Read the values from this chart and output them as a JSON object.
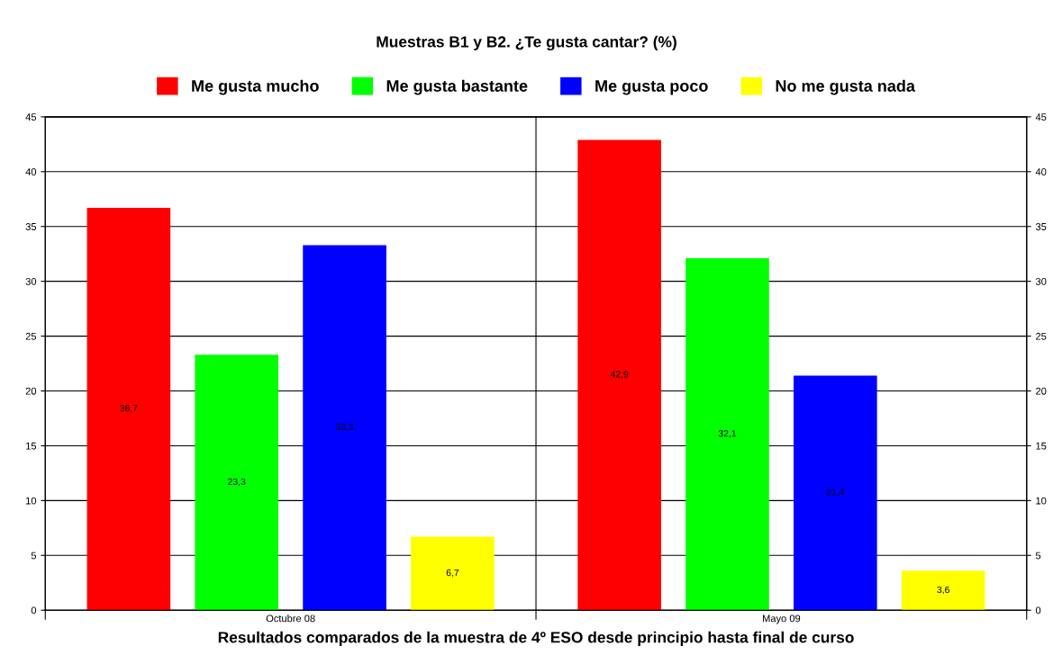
{
  "chart_data": {
    "type": "bar",
    "title": "Muestras B1 y B2. ¿Te gusta cantar? (%)",
    "xlabel": "Resultados comparados de la muestra de 4º ESO desde principio hasta final de curso",
    "categories": [
      "Octubre 08",
      "Mayo 09"
    ],
    "series": [
      {
        "name": "Me gusta mucho",
        "color": "#ff0000",
        "values": [
          36.7,
          42.9
        ],
        "value_labels": [
          "36,7",
          "42,9"
        ]
      },
      {
        "name": "Me gusta bastante",
        "color": "#00ff00",
        "values": [
          23.3,
          32.1
        ],
        "value_labels": [
          "23,3",
          "32,1"
        ]
      },
      {
        "name": "Me gusta poco",
        "color": "#0000ff",
        "values": [
          33.3,
          21.4
        ],
        "value_labels": [
          "33,3",
          "21,4"
        ]
      },
      {
        "name": "No me gusta nada",
        "color": "#ffff00",
        "values": [
          6.7,
          3.6
        ],
        "value_labels": [
          "6,7",
          "3,6"
        ]
      }
    ],
    "ylim": [
      0,
      45
    ],
    "yticks": [
      0,
      5,
      10,
      15,
      20,
      25,
      30,
      35,
      40,
      45
    ],
    "y2lim": [
      0,
      45
    ],
    "y2ticks": [
      0,
      5,
      10,
      15,
      20,
      25,
      30,
      35,
      40,
      45
    ],
    "grid": true,
    "legend": "top"
  }
}
